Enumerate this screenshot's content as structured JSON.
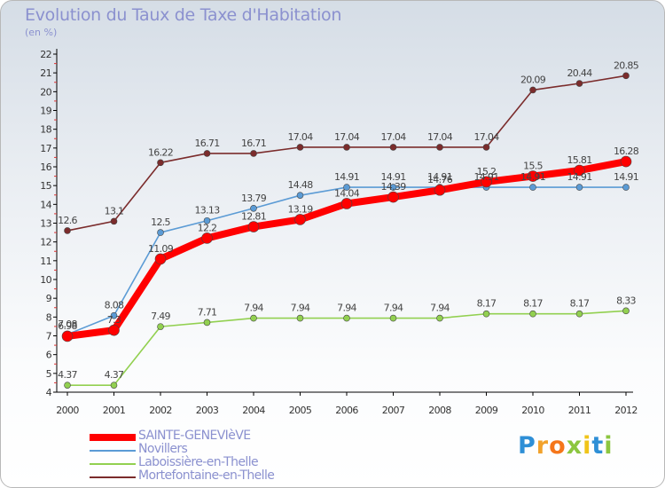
{
  "chart_data": {
    "type": "line",
    "title": "Evolution du Taux de Taxe d'Habitation",
    "subtitle": "(en %)",
    "xlabel": "",
    "ylabel": "",
    "categories": [
      "2000",
      "2001",
      "2002",
      "2003",
      "2004",
      "2005",
      "2006",
      "2007",
      "2008",
      "2009",
      "2010",
      "2011",
      "2012"
    ],
    "ylim": [
      4,
      22
    ],
    "yticks": [
      4,
      5,
      6,
      7,
      8,
      9,
      10,
      11,
      12,
      13,
      14,
      15,
      16,
      17,
      18,
      19,
      20,
      21,
      22
    ],
    "grid": false,
    "legend_position": "bottom-left",
    "series": [
      {
        "name": "SAINTE-GENEVIèVE",
        "color": "#ff0000",
        "values": [
          6.98,
          7.3,
          11.09,
          12.2,
          12.81,
          13.19,
          14.04,
          14.39,
          14.76,
          15.2,
          15.5,
          15.81,
          16.28
        ]
      },
      {
        "name": "Novillers",
        "color": "#5b9bd5",
        "values": [
          7.08,
          8.08,
          12.5,
          13.13,
          13.79,
          14.48,
          14.91,
          14.91,
          14.91,
          14.91,
          14.91,
          14.91,
          14.91
        ]
      },
      {
        "name": "Laboissière-en-Thelle",
        "color": "#92d050",
        "values": [
          4.37,
          4.37,
          7.49,
          7.71,
          7.94,
          7.94,
          7.94,
          7.94,
          7.94,
          8.17,
          8.17,
          8.17,
          8.33
        ]
      },
      {
        "name": "Mortefontaine-en-Thelle",
        "color": "#7b2c2c",
        "values": [
          12.6,
          13.1,
          16.22,
          16.71,
          16.71,
          17.04,
          17.04,
          17.04,
          17.04,
          17.04,
          20.09,
          20.44,
          20.85
        ]
      }
    ]
  },
  "brand": {
    "letters": [
      "P",
      "r",
      "o",
      "x",
      "i",
      "t",
      "i"
    ],
    "colors": [
      "#2e8fd6",
      "#f2a22c",
      "#f5761a",
      "#8cc63f",
      "#f0c419",
      "#2e8fd6",
      "#8cc63f"
    ]
  }
}
